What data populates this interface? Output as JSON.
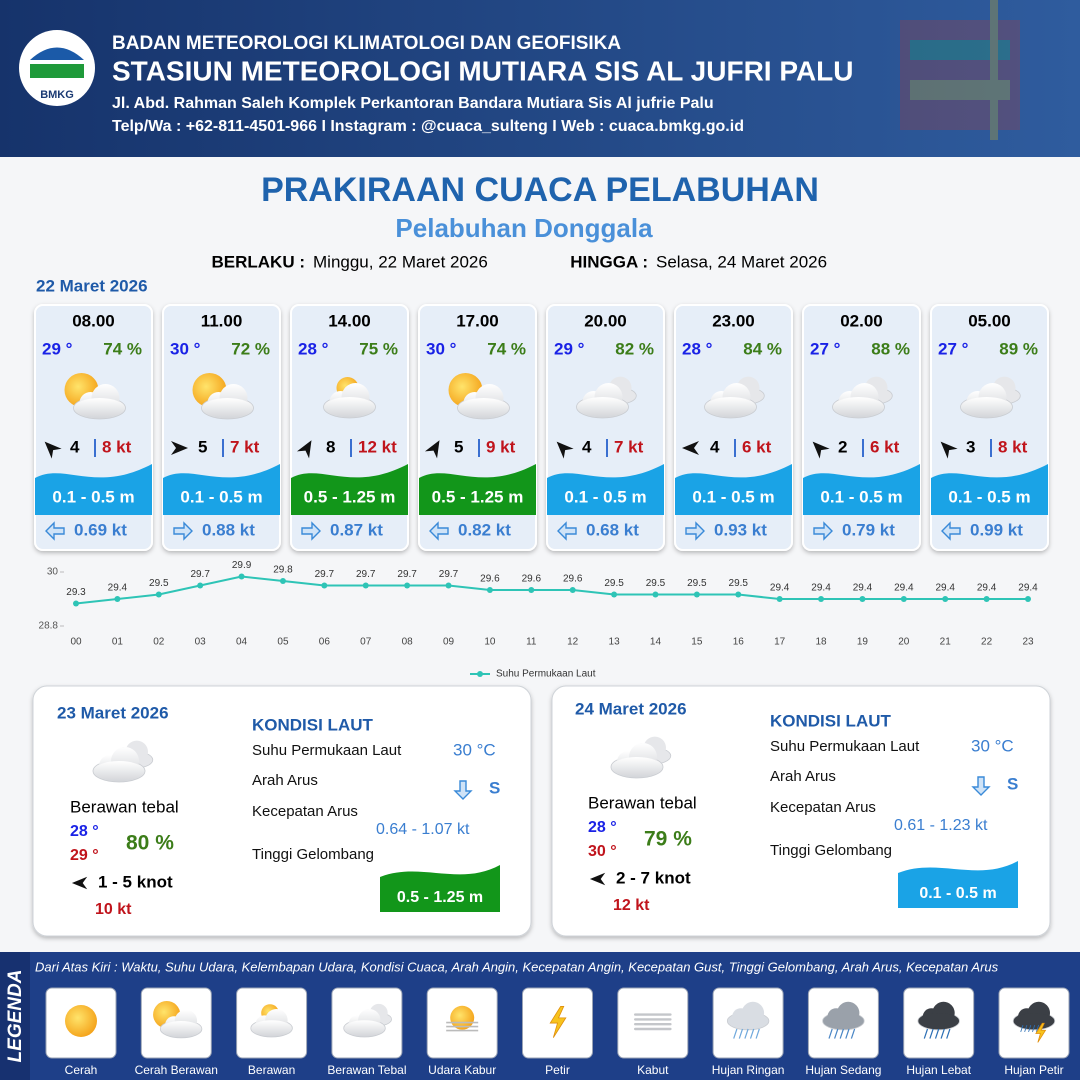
{
  "header": {
    "logo": "BMKG",
    "agency": "BADAN METEOROLOGI KLIMATOLOGI DAN GEOFISIKA",
    "station": "STASIUN METEOROLOGI MUTIARA SIS AL JUFRI PALU",
    "address": "Jl. Abd. Rahman Saleh Komplek Perkantoran Bandara Mutiara Sis Al jufrie Palu",
    "contact": "Telp/Wa : +62-811-4501-966  I  Instagram : @cuaca_sulteng  I  Web : cuaca.bmkg.go.id"
  },
  "title": "PRAKIRAAN CUACA PELABUHAN",
  "port": "Pelabuhan Donggala",
  "validity": {
    "from_label": "BERLAKU :",
    "from": "Minggu, 22 Maret 2026",
    "to_label": "HINGGA :",
    "to": "Selasa, 24 Maret 2026"
  },
  "date": "22 Maret 2026",
  "forecast": [
    {
      "time": "08.00",
      "temp": "29 °",
      "humidity": "74 %",
      "icon": 1,
      "wind_arrow_deg": 315,
      "wind": "4",
      "gust": "8 kt",
      "wave": "0.1 - 0.5 m",
      "wave_color": "#1aa3e6",
      "current_arrow_deg": 270,
      "current": "0.69 kt"
    },
    {
      "time": "11.00",
      "temp": "30 °",
      "humidity": "72 %",
      "icon": 1,
      "wind_arrow_deg": 90,
      "wind": "5",
      "gust": "7 kt",
      "wave": "0.1 - 0.5 m",
      "wave_color": "#1aa3e6",
      "current_arrow_deg": 90,
      "current": "0.88 kt"
    },
    {
      "time": "14.00",
      "temp": "28 °",
      "humidity": "75 %",
      "icon": 2,
      "wind_arrow_deg": 30,
      "wind": "8",
      "gust": "12 kt",
      "wave": "0.5 - 1.25 m",
      "wave_color": "#12961a",
      "current_arrow_deg": 90,
      "current": "0.87 kt"
    },
    {
      "time": "17.00",
      "temp": "30 °",
      "humidity": "74 %",
      "icon": 1,
      "wind_arrow_deg": 30,
      "wind": "5",
      "gust": "9 kt",
      "wave": "0.5 - 1.25 m",
      "wave_color": "#12961a",
      "current_arrow_deg": 270,
      "current": "0.82 kt"
    },
    {
      "time": "20.00",
      "temp": "29 °",
      "humidity": "82 %",
      "icon": 3,
      "wind_arrow_deg": 315,
      "wind": "4",
      "gust": "7 kt",
      "wave": "0.1 - 0.5 m",
      "wave_color": "#1aa3e6",
      "current_arrow_deg": 270,
      "current": "0.68 kt"
    },
    {
      "time": "23.00",
      "temp": "28 °",
      "humidity": "84 %",
      "icon": 3,
      "wind_arrow_deg": 270,
      "wind": "4",
      "gust": "6 kt",
      "wave": "0.1 - 0.5 m",
      "wave_color": "#1aa3e6",
      "current_arrow_deg": 90,
      "current": "0.93 kt"
    },
    {
      "time": "02.00",
      "temp": "27 °",
      "humidity": "88 %",
      "icon": 3,
      "wind_arrow_deg": 315,
      "wind": "2",
      "gust": "6 kt",
      "wave": "0.1 - 0.5 m",
      "wave_color": "#1aa3e6",
      "current_arrow_deg": 90,
      "current": "0.79 kt"
    },
    {
      "time": "05.00",
      "temp": "27 °",
      "humidity": "89 %",
      "icon": 3,
      "wind_arrow_deg": 315,
      "wind": "3",
      "gust": "8 kt",
      "wave": "0.1 - 0.5 m",
      "wave_color": "#1aa3e6",
      "current_arrow_deg": 270,
      "current": "0.99 kt"
    }
  ],
  "chart_data": {
    "type": "line",
    "categories": [
      "00",
      "01",
      "02",
      "03",
      "04",
      "05",
      "06",
      "07",
      "08",
      "09",
      "10",
      "11",
      "12",
      "13",
      "14",
      "15",
      "16",
      "17",
      "18",
      "19",
      "20",
      "21",
      "22",
      "23"
    ],
    "series": [
      {
        "name": "Suhu Permukaan Laut",
        "color": "#2ec4b6",
        "values": [
          29.3,
          29.4,
          29.5,
          29.7,
          29.9,
          29.8,
          29.7,
          29.7,
          29.7,
          29.7,
          29.6,
          29.6,
          29.6,
          29.5,
          29.5,
          29.5,
          29.5,
          29.4,
          29.4,
          29.4,
          29.4,
          29.4,
          29.4,
          29.4
        ]
      }
    ],
    "ylim": [
      28.8,
      30
    ],
    "yticks": [
      28.8,
      30
    ],
    "grid": false,
    "legend": "bottom"
  },
  "days": [
    {
      "date": "23 Maret 2026",
      "icon": 3,
      "condition": "Berawan tebal",
      "temp_min": "28 °",
      "temp_max": "29 °",
      "humidity": "80 %",
      "wind_arrow_deg": 270,
      "wind": "1 - 5 knot",
      "gust": "10 kt",
      "sea": {
        "heading": "KONDISI LAUT",
        "sst_label": "Suhu Permukaan Laut",
        "sst": "30 °C",
        "current_dir_label": "Arah Arus",
        "current_arrow_deg": 180,
        "current_dir": "S",
        "current_speed_label": "Kecepatan Arus",
        "current_speed": "0.64 - 1.07 kt",
        "wave_label": "Tinggi Gelombang",
        "wave": "0.5 - 1.25 m",
        "wave_color": "#12961a"
      }
    },
    {
      "date": "24 Maret 2026",
      "icon": 3,
      "condition": "Berawan tebal",
      "temp_min": "28 °",
      "temp_max": "30 °",
      "humidity": "79 %",
      "wind_arrow_deg": 270,
      "wind": "2 - 7 knot",
      "gust": "12 kt",
      "sea": {
        "heading": "KONDISI LAUT",
        "sst_label": "Suhu Permukaan Laut",
        "sst": "30 °C",
        "current_dir_label": "Arah Arus",
        "current_arrow_deg": 180,
        "current_dir": "S",
        "current_speed_label": "Kecepatan Arus",
        "current_speed": "0.61 - 1.23 kt",
        "wave_label": "Tinggi Gelombang",
        "wave": "0.1 - 0.5 m",
        "wave_color": "#1aa3e6"
      }
    }
  ],
  "legend": {
    "title": "LEGENDA",
    "description": "Dari Atas Kiri : Waktu, Suhu Udara, Kelembapan Udara, Kondisi Cuaca, Arah Angin, Kecepatan Angin, Kecepatan Gust, Tinggi Gelombang, Arah Arus, Kecepatan Arus",
    "items": [
      "Cerah",
      "Cerah Berawan",
      "Berawan",
      "Berawan Tebal",
      "Udara Kabur",
      "Petir",
      "Kabut",
      "Hujan Ringan",
      "Hujan Sedang",
      "Hujan Lebat",
      "Hujan Petir"
    ]
  }
}
